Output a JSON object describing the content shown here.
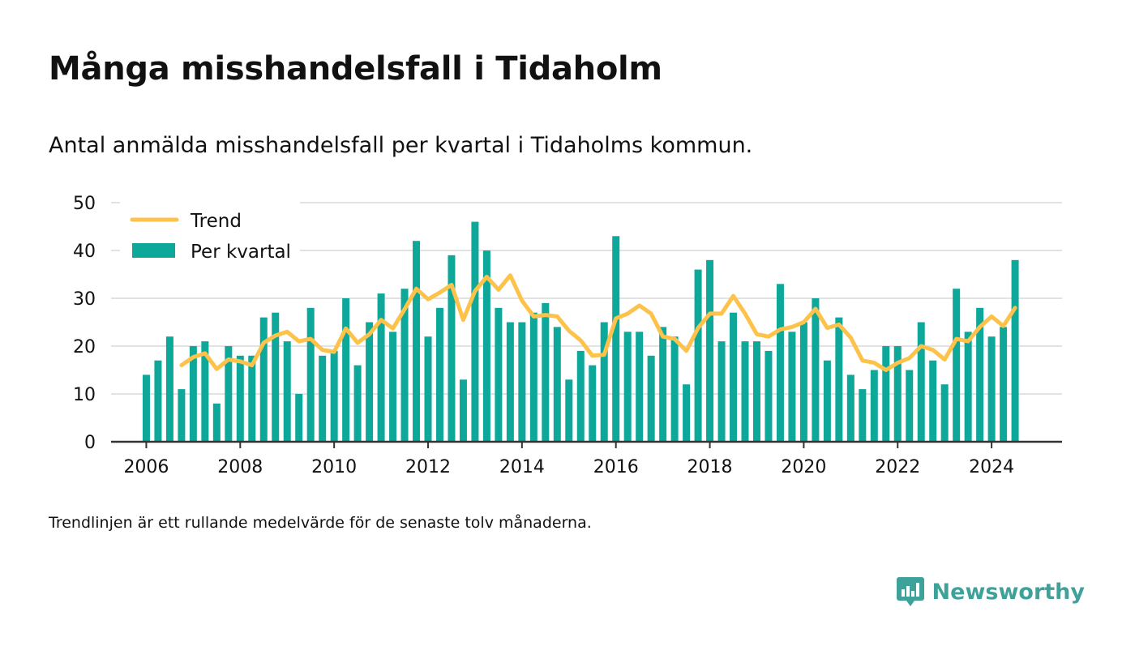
{
  "header": {
    "title": "Många misshandelsfall i Tidaholm",
    "subtitle": "Antal anmälda misshandelsfall per kvartal i Tidaholms kommun."
  },
  "footer": {
    "note": "Trendlinjen är ett rullande medelvärde för de senaste tolv månaderna.",
    "brand": "Newsworthy",
    "brand_icon": "bar-chart-speech-bubble-icon"
  },
  "colors": {
    "bar": "#0ea89a",
    "trend": "#fcc24a",
    "grid": "#d8d8d8",
    "axis": "#333333",
    "text": "#111111",
    "brand": "#3fa29a"
  },
  "chart_data": {
    "type": "bar",
    "x_unit": "quarter",
    "ylim": [
      0,
      50
    ],
    "xlim": [
      "2005-Q2",
      "2025-Q3"
    ],
    "y_ticks": [
      0,
      10,
      20,
      30,
      40,
      50
    ],
    "x_ticks": [
      "2006",
      "2008",
      "2010",
      "2012",
      "2014",
      "2016",
      "2018",
      "2020",
      "2022",
      "2024"
    ],
    "grid": true,
    "legend_position": "top-left",
    "categories": [
      "2006-Q1",
      "2006-Q2",
      "2006-Q3",
      "2006-Q4",
      "2007-Q1",
      "2007-Q2",
      "2007-Q3",
      "2007-Q4",
      "2008-Q1",
      "2008-Q2",
      "2008-Q3",
      "2008-Q4",
      "2009-Q1",
      "2009-Q2",
      "2009-Q3",
      "2009-Q4",
      "2010-Q1",
      "2010-Q2",
      "2010-Q3",
      "2010-Q4",
      "2011-Q1",
      "2011-Q2",
      "2011-Q3",
      "2011-Q4",
      "2012-Q1",
      "2012-Q2",
      "2012-Q3",
      "2012-Q4",
      "2013-Q1",
      "2013-Q2",
      "2013-Q3",
      "2013-Q4",
      "2014-Q1",
      "2014-Q2",
      "2014-Q3",
      "2014-Q4",
      "2015-Q1",
      "2015-Q2",
      "2015-Q3",
      "2015-Q4",
      "2016-Q1",
      "2016-Q2",
      "2016-Q3",
      "2016-Q4",
      "2017-Q1",
      "2017-Q2",
      "2017-Q3",
      "2017-Q4",
      "2018-Q1",
      "2018-Q2",
      "2018-Q3",
      "2018-Q4",
      "2019-Q1",
      "2019-Q2",
      "2019-Q3",
      "2019-Q4",
      "2020-Q1",
      "2020-Q2",
      "2020-Q3",
      "2020-Q4",
      "2021-Q1",
      "2021-Q2",
      "2021-Q3",
      "2021-Q4",
      "2022-Q1",
      "2022-Q2",
      "2022-Q3",
      "2022-Q4",
      "2023-Q1",
      "2023-Q2",
      "2023-Q3",
      "2023-Q4",
      "2024-Q1",
      "2024-Q2",
      "2024-Q3"
    ],
    "series": [
      {
        "name": "Per kvartal",
        "kind": "bar",
        "values": [
          14,
          17,
          22,
          11,
          20,
          21,
          8,
          20,
          18,
          18,
          26,
          27,
          21,
          10,
          28,
          18,
          19,
          30,
          16,
          25,
          31,
          23,
          32,
          42,
          22,
          28,
          39,
          13,
          46,
          40,
          28,
          25,
          25,
          27,
          29,
          24,
          13,
          19,
          16,
          25,
          43,
          23,
          23,
          18,
          24,
          22,
          12,
          36,
          38,
          21,
          27,
          21,
          21,
          19,
          33,
          23,
          25,
          30,
          17,
          26,
          14,
          11,
          15,
          20,
          20,
          15,
          25,
          17,
          12,
          32,
          23,
          28,
          22,
          24,
          38
        ]
      },
      {
        "name": "Trend",
        "kind": "line",
        "values": [
          null,
          null,
          null,
          16,
          17.7,
          18.5,
          15.2,
          17.2,
          16.8,
          16,
          20.7,
          22.2,
          23,
          21,
          21.5,
          19.2,
          18.8,
          23.7,
          20.7,
          22.5,
          25.5,
          23.7,
          27.7,
          32,
          29.8,
          31.2,
          32.8,
          25.5,
          31.5,
          34.5,
          31.8,
          34.8,
          29.5,
          26.2,
          26.5,
          26.2,
          23.2,
          21.2,
          18,
          18.2,
          25.8,
          26.8,
          28.5,
          26.8,
          22,
          21.5,
          19,
          23.8,
          26.8,
          26.8,
          30.5,
          26.8,
          22.5,
          22,
          23.5,
          24,
          25,
          27.8,
          23.8,
          24.5,
          21.8,
          17,
          16.5,
          15,
          16.5,
          17.5,
          20,
          19.2,
          17.2,
          21.5,
          21,
          24,
          26.2,
          24.2,
          28
        ]
      }
    ]
  }
}
